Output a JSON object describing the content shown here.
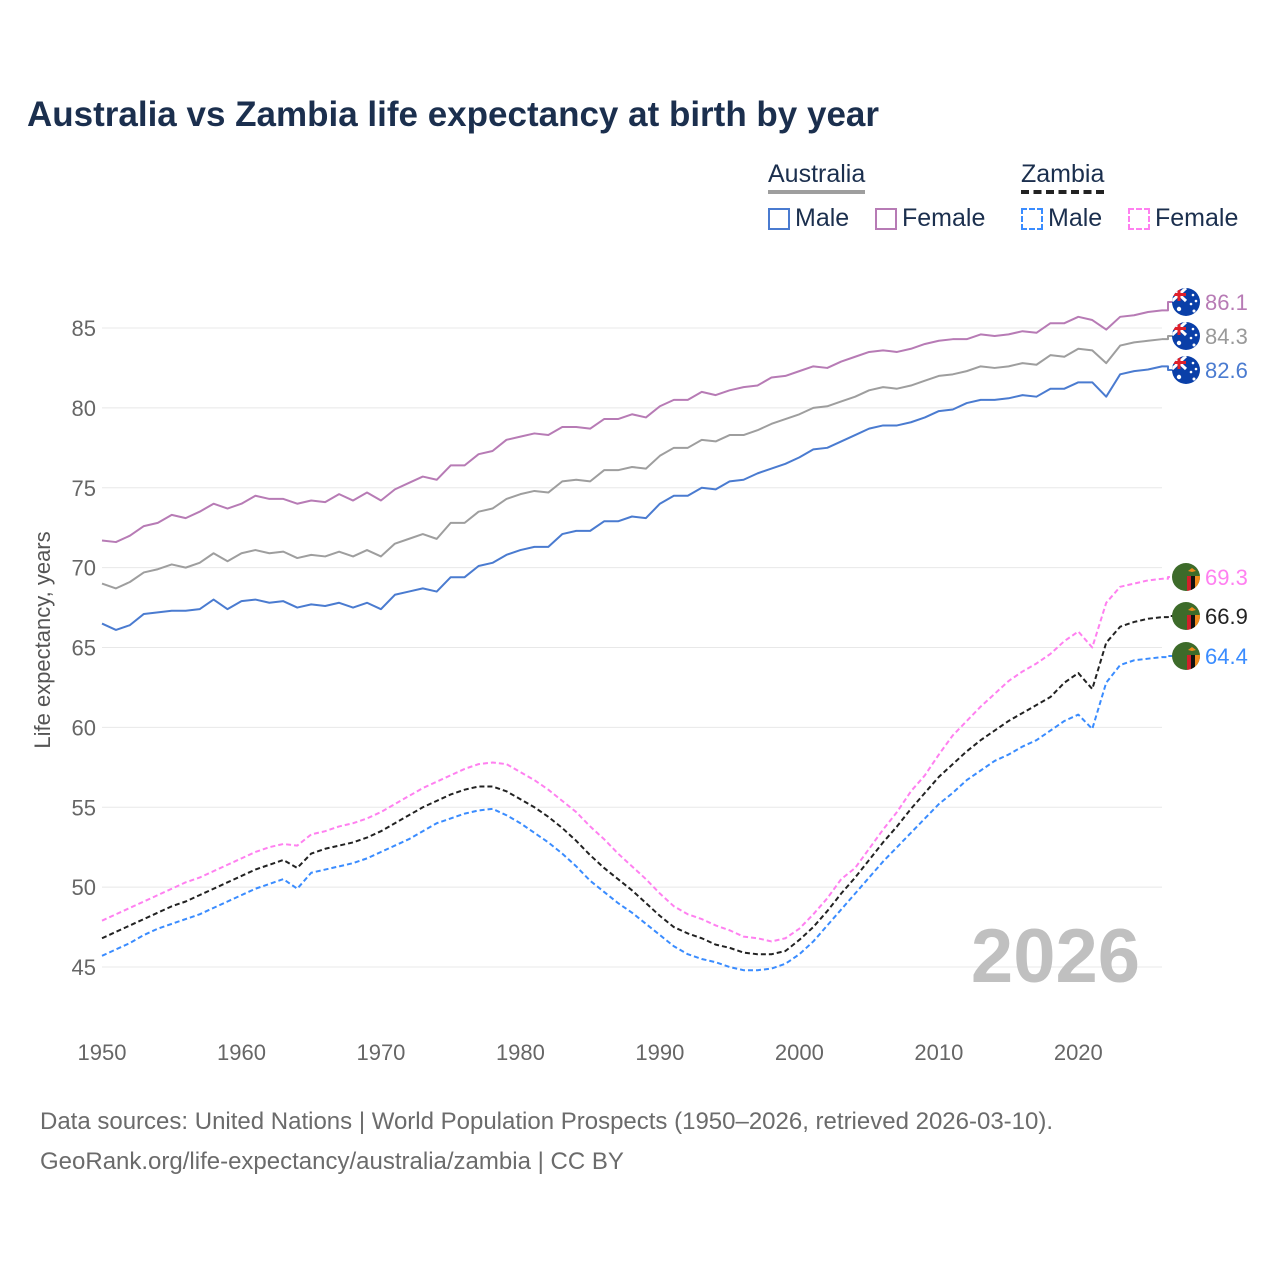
{
  "title": "Australia vs Zambia life expectancy at birth by year",
  "legend": {
    "groups": [
      {
        "name": "Australia",
        "underline_color": "#9e9e9e",
        "dashed": false
      },
      {
        "name": "Zambia",
        "underline_color": "#222222",
        "dashed": true
      }
    ],
    "items": [
      {
        "label": "Male",
        "color": "#4a7bd0",
        "dashed": false
      },
      {
        "label": "Female",
        "color": "#b77bb5",
        "dashed": false
      },
      {
        "label": "Male",
        "color": "#3a8cff",
        "dashed": true
      },
      {
        "label": "Female",
        "color": "#ff80f0",
        "dashed": true
      }
    ]
  },
  "watermark_year": "2026",
  "source_line1": "Data sources: United Nations | World Population Prospects (1950–2026, retrieved 2026-03-10).",
  "source_line2": "GeoRank.org/life-expectancy/australia/zambia | CC BY",
  "chart_data": {
    "type": "line",
    "title": "Australia vs Zambia life expectancy at birth by year",
    "xlabel": "",
    "ylabel": "Life expectancy, years",
    "xlim": [
      1950,
      2026
    ],
    "ylim": [
      42,
      88
    ],
    "xticks": [
      1950,
      1960,
      1970,
      1980,
      1990,
      2000,
      2010,
      2020
    ],
    "yticks": [
      45,
      50,
      55,
      60,
      65,
      70,
      75,
      80,
      85
    ],
    "grid": true,
    "legend_position": "top-right",
    "x_start": 1950,
    "series": [
      {
        "name": "Australia Female",
        "country": "Australia",
        "color": "#b77bb5",
        "dashed": false,
        "end_label": "86.1",
        "values": [
          71.7,
          71.6,
          72.0,
          72.6,
          72.8,
          73.3,
          73.1,
          73.5,
          74.0,
          73.7,
          74.0,
          74.5,
          74.3,
          74.3,
          74.0,
          74.2,
          74.1,
          74.6,
          74.2,
          74.7,
          74.2,
          74.9,
          75.3,
          75.7,
          75.5,
          76.4,
          76.4,
          77.1,
          77.3,
          78.0,
          78.2,
          78.4,
          78.3,
          78.8,
          78.8,
          78.7,
          79.3,
          79.3,
          79.6,
          79.4,
          80.1,
          80.5,
          80.5,
          81.0,
          80.8,
          81.1,
          81.3,
          81.4,
          81.9,
          82.0,
          82.3,
          82.6,
          82.5,
          82.9,
          83.2,
          83.5,
          83.6,
          83.5,
          83.7,
          84.0,
          84.2,
          84.3,
          84.3,
          84.6,
          84.5,
          84.6,
          84.8,
          84.7,
          85.3,
          85.3,
          85.7,
          85.5,
          84.9,
          85.7,
          85.8,
          86.0,
          86.1
        ]
      },
      {
        "name": "Australia Total",
        "country": "Australia",
        "color": "#9e9e9e",
        "dashed": false,
        "end_label": "84.3",
        "values": [
          69.0,
          68.7,
          69.1,
          69.7,
          69.9,
          70.2,
          70.0,
          70.3,
          70.9,
          70.4,
          70.9,
          71.1,
          70.9,
          71.0,
          70.6,
          70.8,
          70.7,
          71.0,
          70.7,
          71.1,
          70.7,
          71.5,
          71.8,
          72.1,
          71.8,
          72.8,
          72.8,
          73.5,
          73.7,
          74.3,
          74.6,
          74.8,
          74.7,
          75.4,
          75.5,
          75.4,
          76.1,
          76.1,
          76.3,
          76.2,
          77.0,
          77.5,
          77.5,
          78.0,
          77.9,
          78.3,
          78.3,
          78.6,
          79.0,
          79.3,
          79.6,
          80.0,
          80.1,
          80.4,
          80.7,
          81.1,
          81.3,
          81.2,
          81.4,
          81.7,
          82.0,
          82.1,
          82.3,
          82.6,
          82.5,
          82.6,
          82.8,
          82.7,
          83.3,
          83.2,
          83.7,
          83.6,
          82.8,
          83.9,
          84.1,
          84.2,
          84.3
        ]
      },
      {
        "name": "Australia Male",
        "country": "Australia",
        "color": "#4a7bd0",
        "dashed": false,
        "end_label": "82.6",
        "values": [
          66.5,
          66.1,
          66.4,
          67.1,
          67.2,
          67.3,
          67.3,
          67.4,
          68.0,
          67.4,
          67.9,
          68.0,
          67.8,
          67.9,
          67.5,
          67.7,
          67.6,
          67.8,
          67.5,
          67.8,
          67.4,
          68.3,
          68.5,
          68.7,
          68.5,
          69.4,
          69.4,
          70.1,
          70.3,
          70.8,
          71.1,
          71.3,
          71.3,
          72.1,
          72.3,
          72.3,
          72.9,
          72.9,
          73.2,
          73.1,
          74.0,
          74.5,
          74.5,
          75.0,
          74.9,
          75.4,
          75.5,
          75.9,
          76.2,
          76.5,
          76.9,
          77.4,
          77.5,
          77.9,
          78.3,
          78.7,
          78.9,
          78.9,
          79.1,
          79.4,
          79.8,
          79.9,
          80.3,
          80.5,
          80.5,
          80.6,
          80.8,
          80.7,
          81.2,
          81.2,
          81.6,
          81.6,
          80.7,
          82.1,
          82.3,
          82.4,
          82.6
        ]
      },
      {
        "name": "Zambia Female",
        "country": "Zambia",
        "color": "#ff80f0",
        "dashed": true,
        "end_label": "69.3",
        "values": [
          47.9,
          48.3,
          48.7,
          49.1,
          49.5,
          49.9,
          50.3,
          50.6,
          51.0,
          51.4,
          51.8,
          52.2,
          52.5,
          52.7,
          52.6,
          53.3,
          53.5,
          53.8,
          54.0,
          54.3,
          54.7,
          55.2,
          55.7,
          56.2,
          56.6,
          57.0,
          57.4,
          57.7,
          57.8,
          57.7,
          57.2,
          56.7,
          56.1,
          55.4,
          54.7,
          53.8,
          53.0,
          52.1,
          51.3,
          50.5,
          49.6,
          48.8,
          48.3,
          48.0,
          47.6,
          47.3,
          46.9,
          46.8,
          46.6,
          46.8,
          47.4,
          48.3,
          49.3,
          50.5,
          51.2,
          52.4,
          53.6,
          54.7,
          56.0,
          57.0,
          58.3,
          59.5,
          60.4,
          61.3,
          62.1,
          62.9,
          63.5,
          64.0,
          64.6,
          65.4,
          66.0,
          65.0,
          67.8,
          68.8,
          69.0,
          69.2,
          69.3
        ]
      },
      {
        "name": "Zambia Total",
        "country": "Zambia",
        "color": "#222222",
        "dashed": true,
        "end_label": "66.9",
        "values": [
          46.8,
          47.2,
          47.6,
          48.0,
          48.4,
          48.8,
          49.1,
          49.5,
          49.9,
          50.3,
          50.7,
          51.1,
          51.4,
          51.7,
          51.2,
          52.1,
          52.4,
          52.6,
          52.8,
          53.1,
          53.5,
          54.0,
          54.5,
          55.0,
          55.4,
          55.8,
          56.1,
          56.3,
          56.3,
          56.0,
          55.5,
          55.0,
          54.4,
          53.7,
          52.9,
          52.0,
          51.2,
          50.5,
          49.8,
          49.0,
          48.2,
          47.5,
          47.1,
          46.8,
          46.4,
          46.2,
          45.9,
          45.8,
          45.8,
          46.0,
          46.7,
          47.5,
          48.5,
          49.6,
          50.6,
          51.7,
          52.8,
          53.8,
          54.9,
          55.9,
          56.9,
          57.7,
          58.5,
          59.2,
          59.8,
          60.4,
          60.9,
          61.4,
          61.9,
          62.8,
          63.4,
          62.4,
          65.3,
          66.3,
          66.6,
          66.8,
          66.9
        ]
      },
      {
        "name": "Zambia Male",
        "country": "Zambia",
        "color": "#3a8cff",
        "dashed": true,
        "end_label": "64.4",
        "values": [
          45.7,
          46.1,
          46.5,
          47.0,
          47.4,
          47.7,
          48.0,
          48.3,
          48.7,
          49.1,
          49.5,
          49.9,
          50.2,
          50.5,
          49.9,
          50.9,
          51.1,
          51.3,
          51.5,
          51.8,
          52.2,
          52.6,
          53.0,
          53.5,
          54.0,
          54.3,
          54.6,
          54.8,
          54.9,
          54.5,
          54.0,
          53.4,
          52.8,
          52.1,
          51.3,
          50.4,
          49.7,
          49.0,
          48.4,
          47.7,
          47.0,
          46.3,
          45.8,
          45.5,
          45.3,
          45.0,
          44.8,
          44.8,
          44.9,
          45.2,
          45.8,
          46.6,
          47.6,
          48.6,
          49.6,
          50.6,
          51.6,
          52.5,
          53.4,
          54.3,
          55.2,
          55.9,
          56.7,
          57.3,
          57.9,
          58.3,
          58.8,
          59.2,
          59.8,
          60.4,
          60.8,
          59.9,
          62.8,
          63.9,
          64.2,
          64.3,
          64.4
        ]
      }
    ]
  }
}
